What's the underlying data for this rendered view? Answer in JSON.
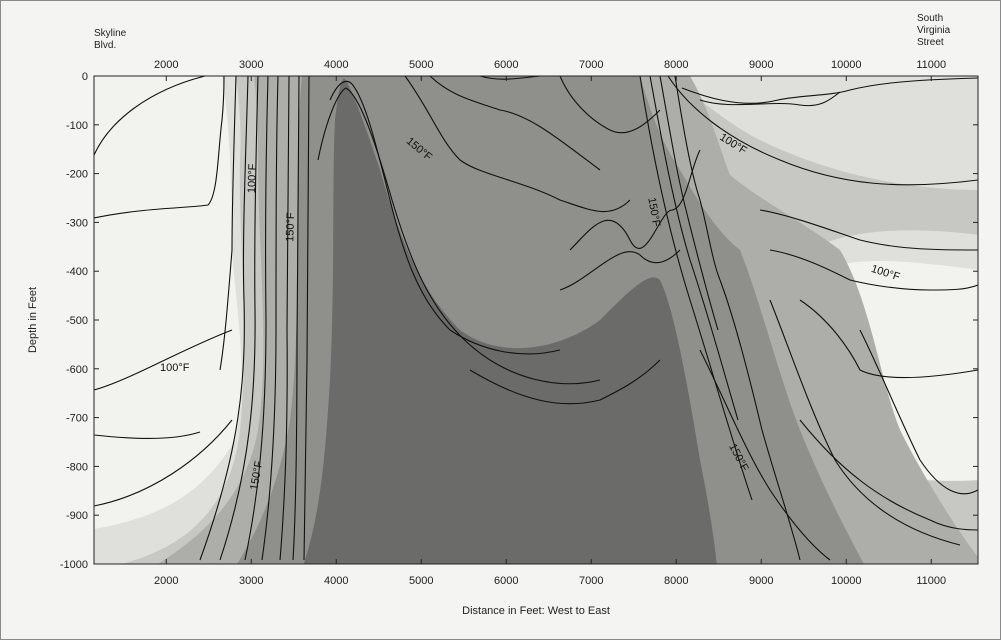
{
  "chart_data": {
    "type": "contour",
    "title": "",
    "xlabel": "Distance in Feet: West to East",
    "ylabel": "Depth in Feet",
    "xlim": [
      1150,
      11550
    ],
    "ylim": [
      -1000,
      0
    ],
    "x_ticks": [
      2000,
      3000,
      4000,
      5000,
      6000,
      7000,
      8000,
      9000,
      10000,
      11000
    ],
    "y_ticks": [
      0,
      -100,
      -200,
      -300,
      -400,
      -500,
      -600,
      -700,
      -800,
      -900,
      -1000
    ],
    "x_tick_labels": [
      "2000",
      "3000",
      "4000",
      "5000",
      "6000",
      "7000",
      "8000",
      "9000",
      "10000",
      "11000"
    ],
    "y_tick_labels": [
      "0",
      "-100",
      "-200",
      "-300",
      "-400",
      "-500",
      "-600",
      "-700",
      "-800",
      "-900",
      "-1000"
    ],
    "top_axis": true,
    "grid": false,
    "corner_labels": {
      "left": [
        "Skyline",
        "Blvd."
      ],
      "right": [
        "South",
        "Virginia",
        "Street"
      ]
    },
    "contour_labels": [
      {
        "text": "100°F",
        "x": 2100,
        "y": -605,
        "rot": 0
      },
      {
        "text": "100°F",
        "x": 3050,
        "y": -210,
        "rot": -88
      },
      {
        "text": "150°F",
        "x": 3500,
        "y": -310,
        "rot": -88
      },
      {
        "text": "150°F",
        "x": 3100,
        "y": -820,
        "rot": -80
      },
      {
        "text": "150°F",
        "x": 4950,
        "y": -155,
        "rot": 40
      },
      {
        "text": "150°F",
        "x": 7700,
        "y": -280,
        "rot": 80
      },
      {
        "text": "100°F",
        "x": 8650,
        "y": -145,
        "rot": 32
      },
      {
        "text": "100°F",
        "x": 10450,
        "y": -410,
        "rot": 18
      },
      {
        "text": "150°F",
        "x": 8700,
        "y": -785,
        "rot": 62
      }
    ],
    "shading_bands": [
      {
        "name": "lt100",
        "color": "#f2f2ef"
      },
      {
        "name": "b1",
        "color": "#dfdfdc"
      },
      {
        "name": "b2",
        "color": "#c7c7c4"
      },
      {
        "name": "b3",
        "color": "#adadaa"
      },
      {
        "name": "b4",
        "color": "#8f8f8c"
      },
      {
        "name": "b5",
        "color": "#6b6b69"
      }
    ]
  }
}
